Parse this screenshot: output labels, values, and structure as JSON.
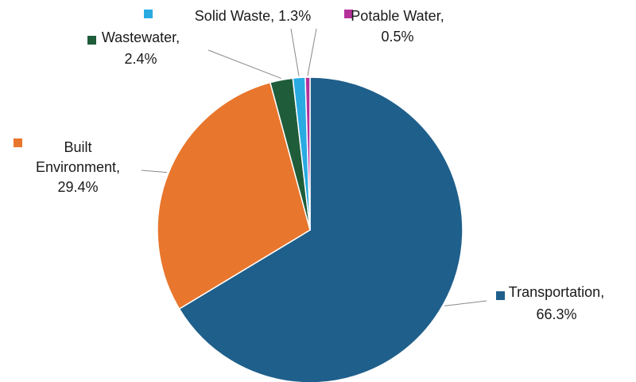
{
  "chart_data": {
    "type": "pie",
    "title": "",
    "start_angle_deg": 0,
    "direction": "clockwise",
    "slices": [
      {
        "name": "Transportation",
        "value": 66.3,
        "display": "66.3%",
        "color": "#1f5f8b"
      },
      {
        "name": "Built Environment",
        "value": 29.4,
        "display": "29.4%",
        "color": "#e8762d"
      },
      {
        "name": "Wastewater",
        "value": 2.4,
        "display": "2.4%",
        "color": "#1e5c3a"
      },
      {
        "name": "Solid Waste",
        "value": 1.3,
        "display": "1.3%",
        "color": "#29abe2"
      },
      {
        "name": "Potable Water",
        "value": 0.5,
        "display": "0.5%",
        "color": "#b5319a"
      }
    ],
    "labels": [
      {
        "key": "transportation",
        "lines": [
          "Transportation,",
          "66.3%"
        ]
      },
      {
        "key": "built-environment",
        "lines": [
          "Built",
          "Environment,",
          "29.4%"
        ]
      },
      {
        "key": "wastewater",
        "lines": [
          "Wastewater,",
          "2.4%"
        ]
      },
      {
        "key": "solid-waste",
        "lines": [
          "Solid Waste, 1.3%"
        ]
      },
      {
        "key": "potable-water",
        "lines": [
          "Potable Water,",
          "0.5%"
        ]
      }
    ],
    "legend": "none",
    "grid": false
  },
  "colors": {
    "leader_line": "#8a8a8a",
    "slice_border": "#ffffff"
  }
}
